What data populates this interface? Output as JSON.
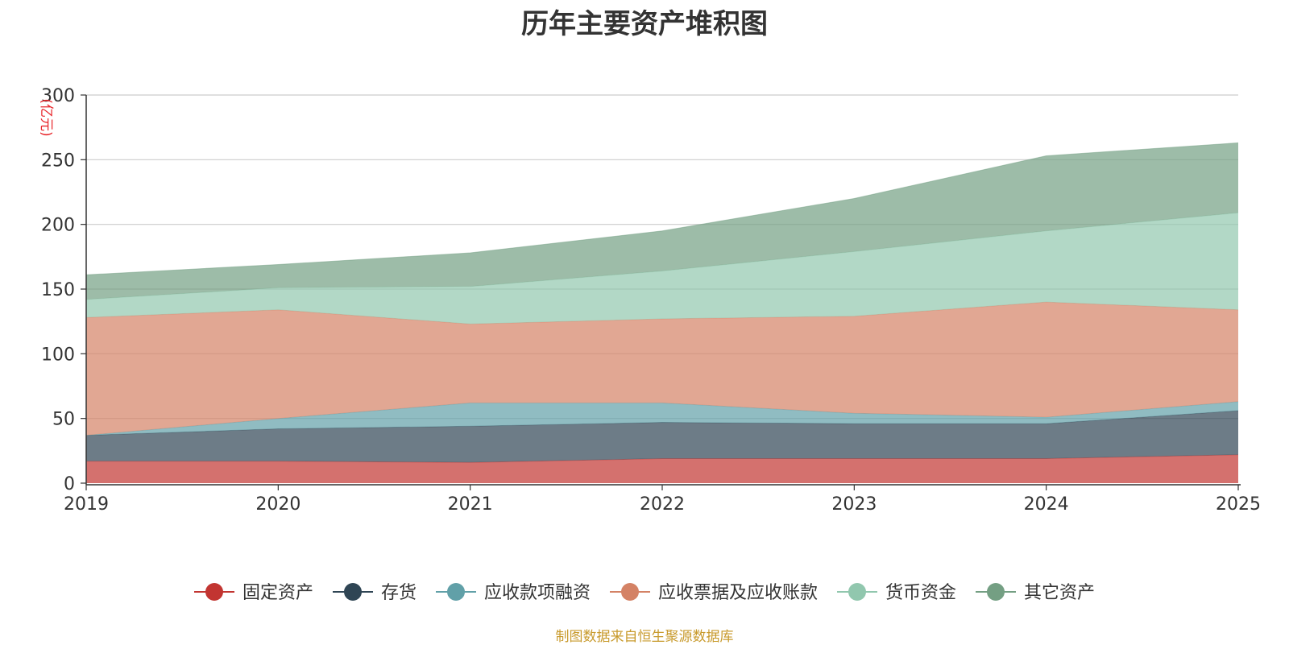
{
  "chart_data": {
    "type": "area",
    "stacked": true,
    "title": "历年主要资产堆积图",
    "ylabel": "(亿元)",
    "xlabel": "",
    "categories": [
      "2019",
      "2020",
      "2021",
      "2022",
      "2023",
      "2024",
      "2025"
    ],
    "ylim": [
      0,
      300
    ],
    "yticks": [
      0,
      50,
      100,
      150,
      200,
      250,
      300
    ],
    "grid": true,
    "legend_position": "bottom",
    "series": [
      {
        "name": "固定资产",
        "color": "#c23531",
        "values": [
          17,
          17,
          16,
          19,
          19,
          19,
          22
        ]
      },
      {
        "name": "存货",
        "color": "#2f4554",
        "values": [
          20,
          25,
          28,
          28,
          27,
          27,
          34
        ]
      },
      {
        "name": "应收款项融资",
        "color": "#61a0a8",
        "values": [
          0,
          8,
          18,
          15,
          8,
          5,
          7
        ]
      },
      {
        "name": "应收票据及应收账款",
        "color": "#d48265",
        "values": [
          91,
          84,
          61,
          65,
          75,
          89,
          71
        ]
      },
      {
        "name": "货币资金",
        "color": "#91c7ae",
        "values": [
          14,
          17,
          29,
          37,
          50,
          55,
          75
        ]
      },
      {
        "name": "其它资产",
        "color": "#749f83",
        "values": [
          19,
          18,
          26,
          31,
          41,
          58,
          54
        ]
      }
    ]
  },
  "source_note": "制图数据来自恒生聚源数据库"
}
